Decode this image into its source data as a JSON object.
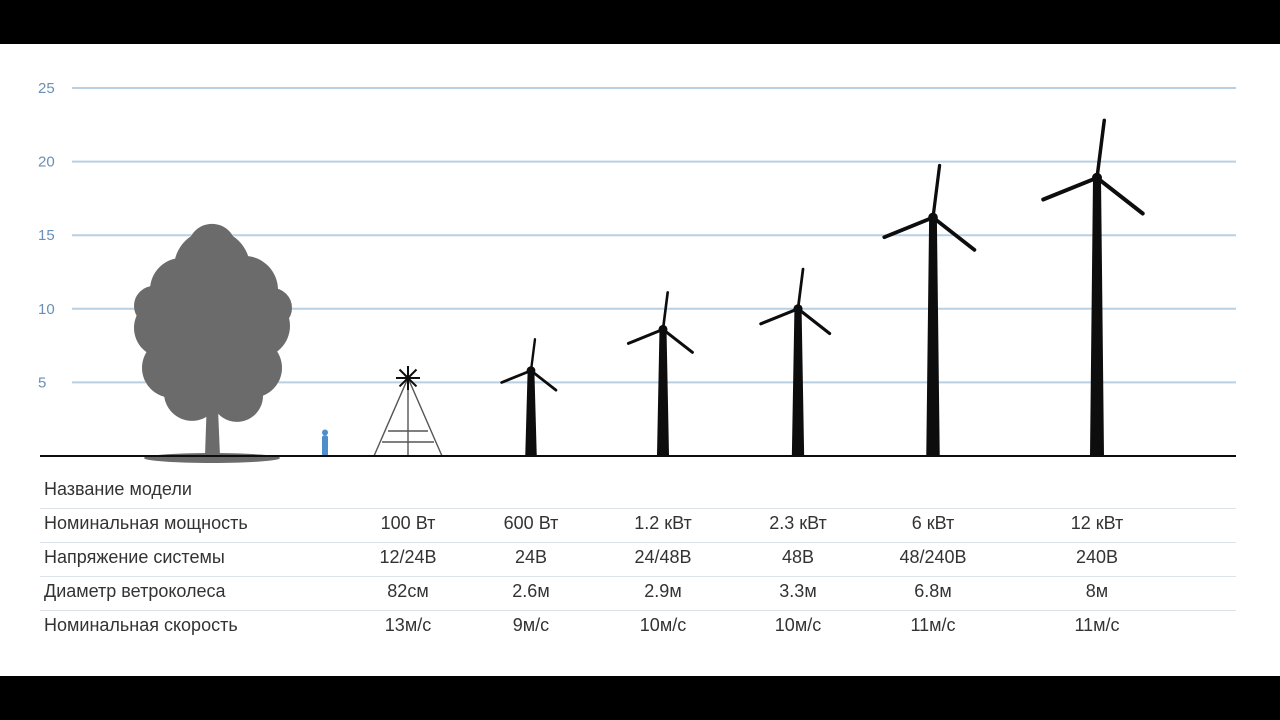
{
  "colors": {
    "gridline": "#b9cfe2",
    "axis_text": "#6a8fb6",
    "silhouette": "#0d0d0d",
    "tree": "#6b6b6b",
    "person": "#4f8dcb",
    "frame": "#000000"
  },
  "chart_data": {
    "type": "table",
    "title": "",
    "ylabel": "",
    "ylim": [
      0,
      25
    ],
    "yticks": [
      "5",
      "10",
      "15",
      "20",
      "25"
    ],
    "grid": true,
    "reference_objects": [
      {
        "name": "tree",
        "height": 15.5
      },
      {
        "name": "person",
        "height": 1.8
      }
    ],
    "series": [
      {
        "model_index": 0,
        "power": "100 Вт",
        "voltage": "12/24В",
        "diameter": "82см",
        "speed": "13м/с",
        "tower": "lattice",
        "hub_height": 5.3
      },
      {
        "model_index": 1,
        "power": "600 Вт",
        "voltage": "24В",
        "diameter": "2.6м",
        "speed": "9м/с",
        "tower": "pole",
        "hub_height": 5.8
      },
      {
        "model_index": 2,
        "power": "1.2 кВт",
        "voltage": "24/48В",
        "diameter": "2.9м",
        "speed": "10м/с",
        "tower": "pole",
        "hub_height": 8.6
      },
      {
        "model_index": 3,
        "power": "2.3 кВт",
        "voltage": "48В",
        "diameter": "3.3м",
        "speed": "10м/с",
        "tower": "pole",
        "hub_height": 10.0
      },
      {
        "model_index": 4,
        "power": "6 кВт",
        "voltage": "48/240В",
        "diameter": "6.8м",
        "speed": "11м/с",
        "tower": "pole",
        "hub_height": 16.2
      },
      {
        "model_index": 5,
        "power": "12 кВт",
        "voltage": "240В",
        "diameter": "8м",
        "speed": "11м/с",
        "tower": "pole",
        "hub_height": 18.9
      }
    ]
  },
  "table": {
    "rows": [
      {
        "key": "name",
        "label": "Название модели"
      },
      {
        "key": "power",
        "label": "Номинальная мощность"
      },
      {
        "key": "voltage",
        "label": "Напряжение системы"
      },
      {
        "key": "diameter",
        "label": "Диаметр ветроколеса"
      },
      {
        "key": "speed",
        "label": "Номинальная скорость"
      }
    ]
  }
}
